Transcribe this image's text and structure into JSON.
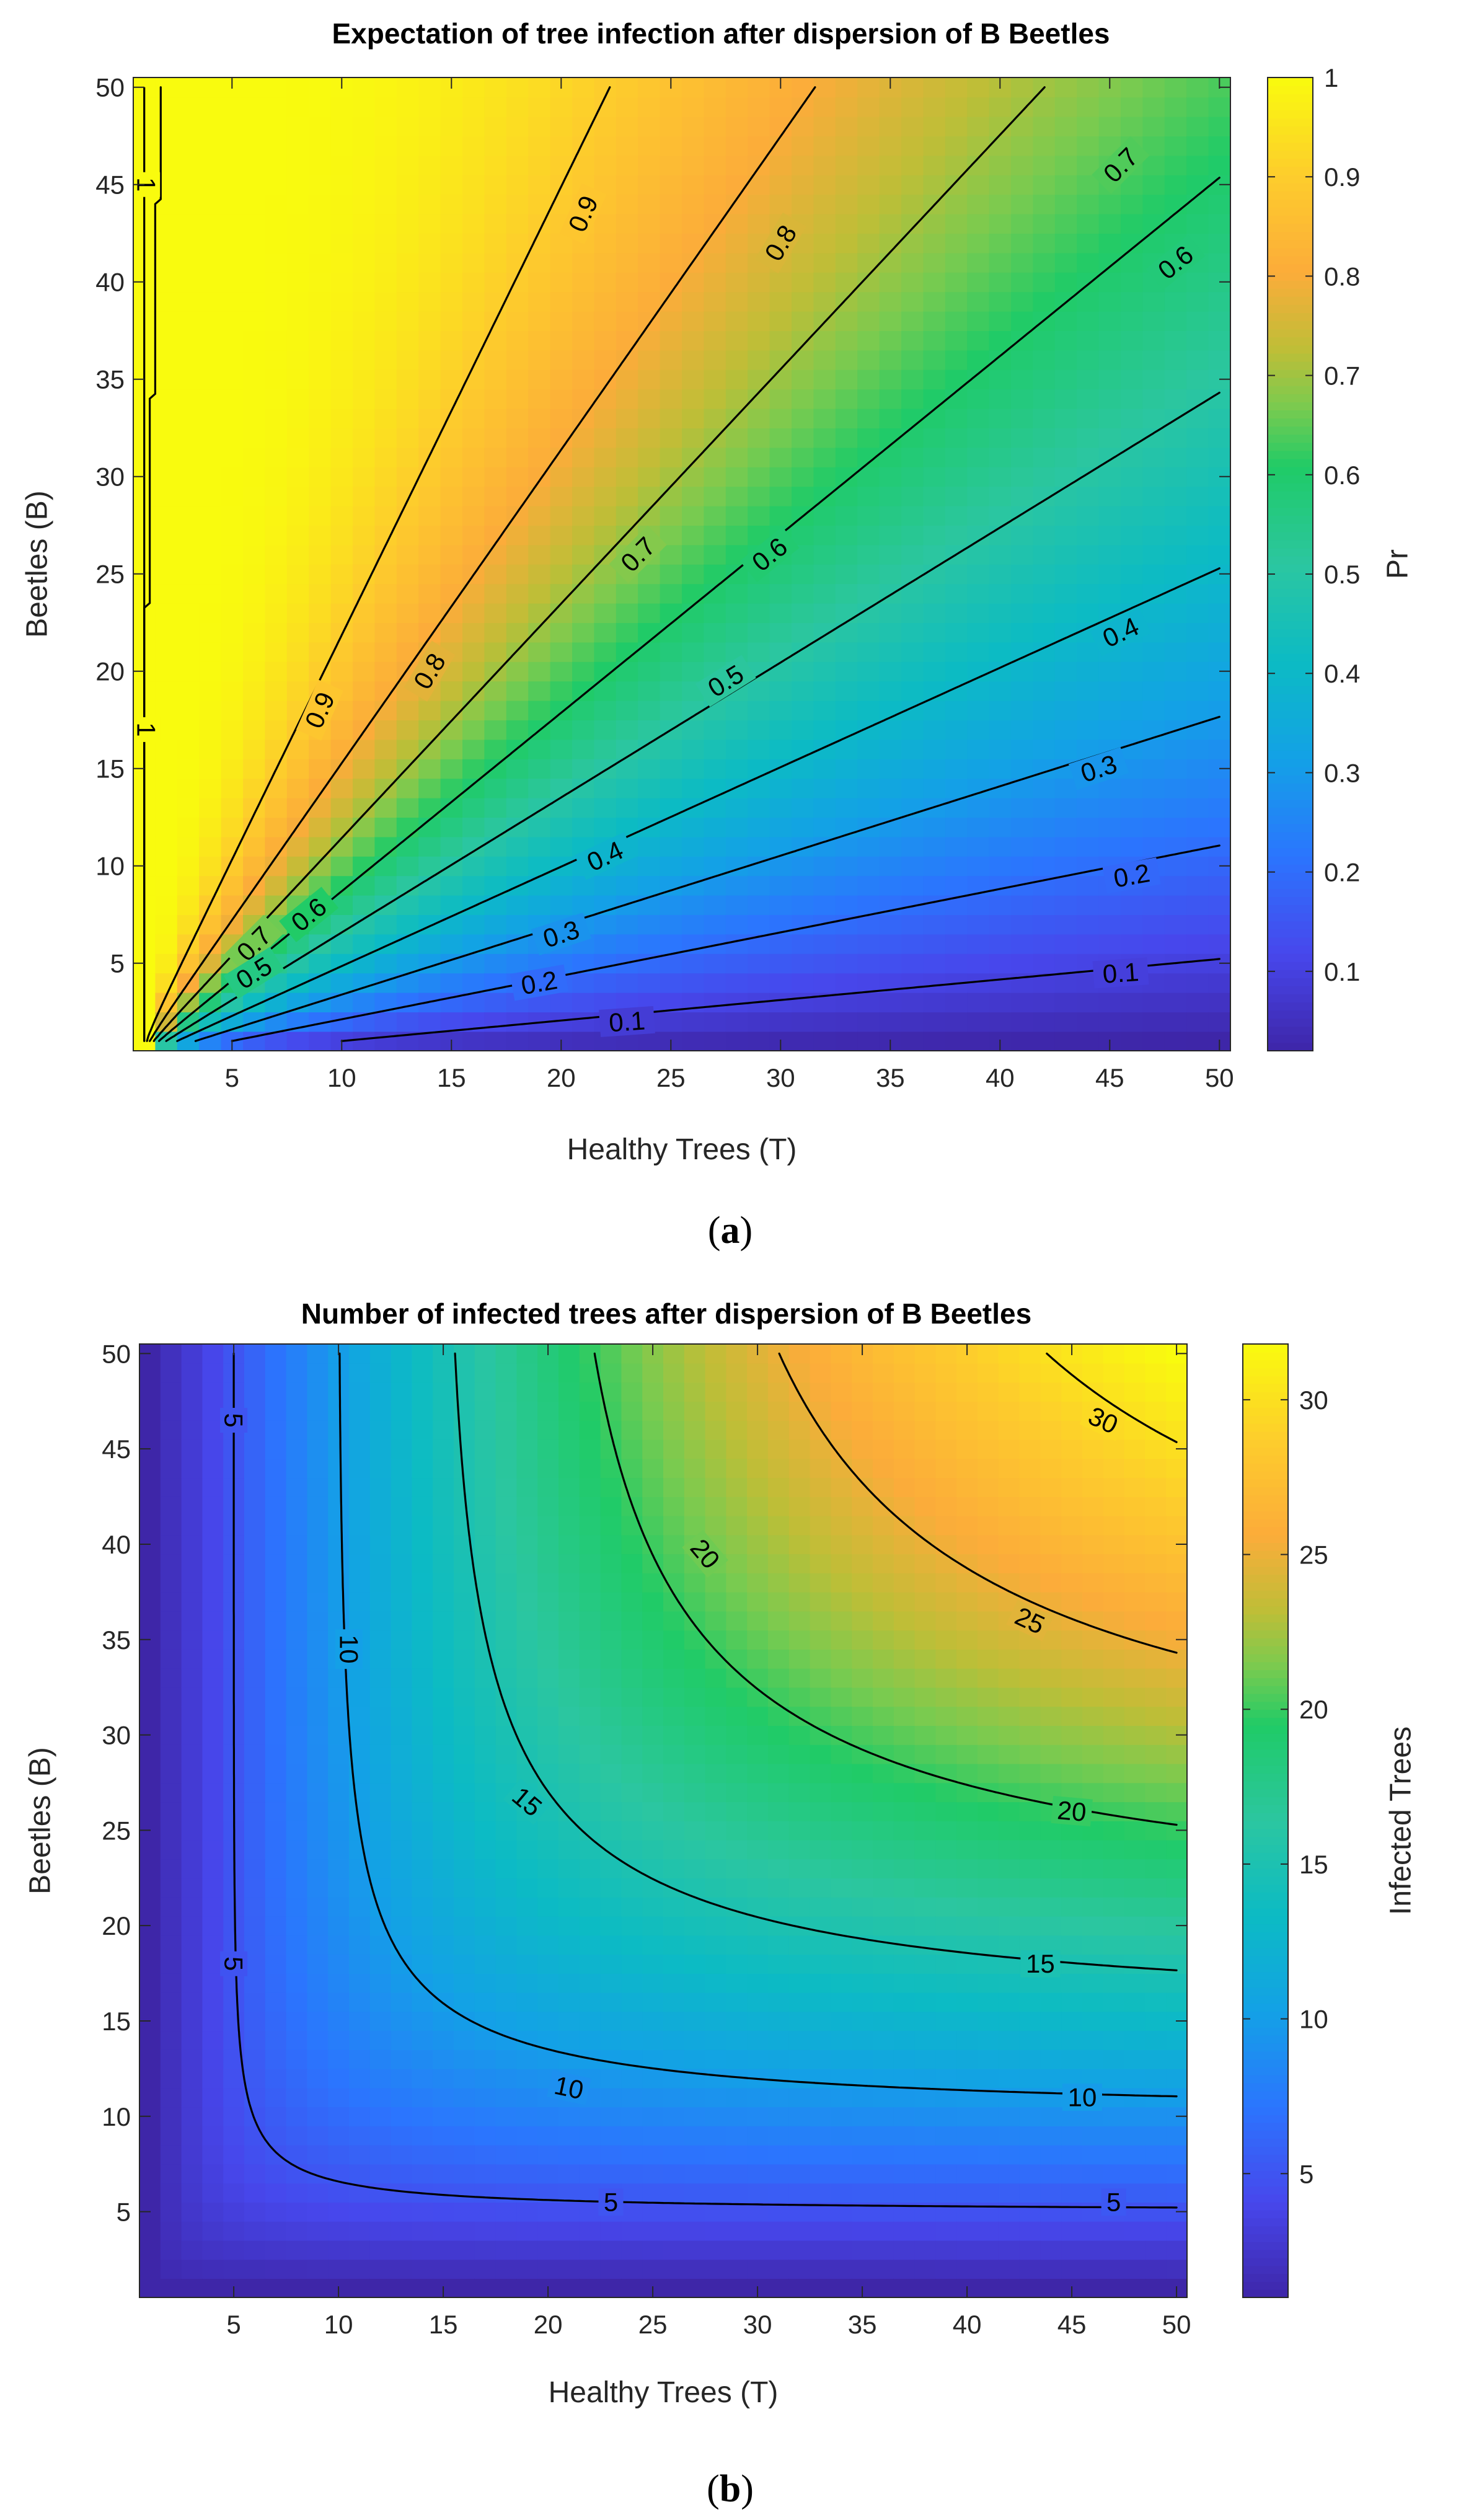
{
  "chart_data": [
    {
      "type": "heatmap",
      "panel": "a",
      "caption": "(a)",
      "caption_open": "(",
      "caption_letter": "a",
      "caption_close": ")",
      "title": "Expectation of tree infection after dispersion of B Beetles",
      "xlabel": "Healthy Trees (T)",
      "ylabel": "Beetles (B)",
      "xlim": [
        0.5,
        50.5
      ],
      "ylim": [
        0.5,
        50.5
      ],
      "xticks": [
        5,
        10,
        15,
        20,
        25,
        30,
        35,
        40,
        45,
        50
      ],
      "yticks": [
        5,
        10,
        15,
        20,
        25,
        30,
        35,
        40,
        45,
        50
      ],
      "grid": 50,
      "colormap": "parula",
      "formula": "probability",
      "colorbar": {
        "label": "Pr",
        "range": [
          0.02,
          1.0
        ],
        "ticks": [
          0.1,
          0.2,
          0.3,
          0.4,
          0.5,
          0.6,
          0.7,
          0.8,
          0.9,
          1
        ]
      },
      "contour_levels": [
        0.1,
        0.2,
        0.3,
        0.4,
        0.5,
        0.6,
        0.7,
        0.8,
        0.9,
        1
      ],
      "contour_labels": [
        {
          "text": "0.9",
          "x": 21,
          "y": 43.5,
          "angle": -66
        },
        {
          "text": "0.9",
          "x": 9,
          "y": 18,
          "angle": -66
        },
        {
          "text": "0.8",
          "x": 30,
          "y": 42,
          "angle": -59
        },
        {
          "text": "0.8",
          "x": 14,
          "y": 20,
          "angle": -59
        },
        {
          "text": "0.7",
          "x": 45.5,
          "y": 46,
          "angle": -45
        },
        {
          "text": "0.7",
          "x": 23.5,
          "y": 26,
          "angle": -45
        },
        {
          "text": "0.7",
          "x": 6,
          "y": 6,
          "angle": -45
        },
        {
          "text": "0.6",
          "x": 48,
          "y": 41,
          "angle": -39
        },
        {
          "text": "0.6",
          "x": 29.5,
          "y": 26,
          "angle": -39
        },
        {
          "text": "0.6",
          "x": 8.5,
          "y": 7.5,
          "angle": -39
        },
        {
          "text": "0.5",
          "x": 27.5,
          "y": 19.5,
          "angle": -32
        },
        {
          "text": "0.5",
          "x": 6,
          "y": 4.5,
          "angle": -32
        },
        {
          "text": "0.4",
          "x": 45.5,
          "y": 22,
          "angle": -25
        },
        {
          "text": "0.4",
          "x": 22,
          "y": 10.5,
          "angle": -25
        },
        {
          "text": "0.3",
          "x": 44.5,
          "y": 15,
          "angle": -18
        },
        {
          "text": "0.3",
          "x": 20,
          "y": 6.5,
          "angle": -18
        },
        {
          "text": "0.2",
          "x": 46,
          "y": 9.5,
          "angle": -10
        },
        {
          "text": "0.2",
          "x": 19,
          "y": 4,
          "angle": -10
        },
        {
          "text": "0.1",
          "x": 45.5,
          "y": 4.5,
          "angle": -4
        },
        {
          "text": "0.1",
          "x": 23,
          "y": 2,
          "angle": -4
        },
        {
          "text": "1",
          "x": 1.1,
          "y": 45,
          "angle": 90
        },
        {
          "text": "1",
          "x": 1.1,
          "y": 17,
          "angle": 90
        }
      ]
    },
    {
      "type": "heatmap",
      "panel": "b",
      "caption": "(b)",
      "caption_open": "(",
      "caption_letter": "b",
      "caption_close": ")",
      "title": "Number of infected trees after dispersion of B Beetles",
      "xlabel": "Healthy Trees (T)",
      "ylabel": "Beetles (B)",
      "xlim": [
        0.5,
        50.5
      ],
      "ylim": [
        0.5,
        50.5
      ],
      "xticks": [
        5,
        10,
        15,
        20,
        25,
        30,
        35,
        40,
        45,
        50
      ],
      "yticks": [
        5,
        10,
        15,
        20,
        25,
        30,
        35,
        40,
        45,
        50
      ],
      "grid": 50,
      "colormap": "parula",
      "formula": "count",
      "colorbar": {
        "label": "Infected Trees",
        "range": [
          1,
          31.8
        ],
        "ticks": [
          5,
          10,
          15,
          20,
          25,
          30
        ]
      },
      "contour_levels": [
        5,
        10,
        15,
        20,
        25,
        30
      ],
      "contour_labels": [
        {
          "text": "5",
          "x": 5,
          "y": 46.5,
          "angle": 90
        },
        {
          "text": "5",
          "x": 5,
          "y": 18,
          "angle": 90
        },
        {
          "text": "5",
          "x": 23,
          "y": 5.5,
          "angle": 0
        },
        {
          "text": "5",
          "x": 47,
          "y": 5.5,
          "angle": 0
        },
        {
          "text": "10",
          "x": 10.5,
          "y": 34.5,
          "angle": 90
        },
        {
          "text": "10",
          "x": 21,
          "y": 11.5,
          "angle": 12
        },
        {
          "text": "10",
          "x": 45.5,
          "y": 11,
          "angle": 0
        },
        {
          "text": "15",
          "x": 19,
          "y": 26.5,
          "angle": 40
        },
        {
          "text": "15",
          "x": 43.5,
          "y": 18,
          "angle": 0
        },
        {
          "text": "20",
          "x": 27.5,
          "y": 39.5,
          "angle": 50
        },
        {
          "text": "20",
          "x": 45,
          "y": 26,
          "angle": 5
        },
        {
          "text": "25",
          "x": 43,
          "y": 36,
          "angle": 25
        },
        {
          "text": "30",
          "x": 46.5,
          "y": 46.5,
          "angle": 25
        }
      ]
    }
  ]
}
